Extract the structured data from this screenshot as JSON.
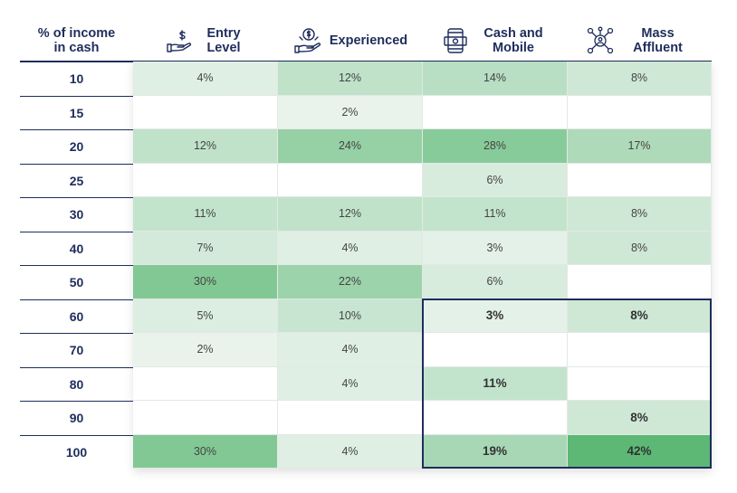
{
  "chart_data": {
    "type": "heatmap",
    "row_header": "% of income in cash",
    "columns": [
      {
        "label": "Entry Level",
        "icon": "hand-money-icon"
      },
      {
        "label": "Experienced",
        "icon": "money-hand-icon"
      },
      {
        "label": "Cash and Mobile",
        "icon": "mobile-cash-icon"
      },
      {
        "label": "Mass Affluent",
        "icon": "network-person-icon"
      }
    ],
    "rows": [
      "10",
      "15",
      "20",
      "25",
      "30",
      "40",
      "50",
      "60",
      "70",
      "80",
      "90",
      "100"
    ],
    "values": [
      [
        4,
        12,
        14,
        8
      ],
      [
        null,
        2,
        null,
        null
      ],
      [
        12,
        24,
        28,
        17
      ],
      [
        null,
        null,
        6,
        null
      ],
      [
        11,
        12,
        11,
        8
      ],
      [
        7,
        4,
        3,
        8
      ],
      [
        30,
        22,
        6,
        null
      ],
      [
        5,
        10,
        3,
        8
      ],
      [
        2,
        4,
        null,
        null
      ],
      [
        null,
        4,
        11,
        null
      ],
      [
        null,
        null,
        null,
        8
      ],
      [
        30,
        4,
        19,
        42
      ]
    ],
    "value_suffix": "%",
    "highlight": {
      "rows": [
        "60",
        "70",
        "80",
        "90",
        "100"
      ],
      "columns": [
        "Cash and Mobile",
        "Mass Affluent"
      ]
    },
    "colors": {
      "low": "#f4f8f6",
      "high": "#5cb874",
      "text": "#444444",
      "header": "#1f2d5c"
    }
  }
}
